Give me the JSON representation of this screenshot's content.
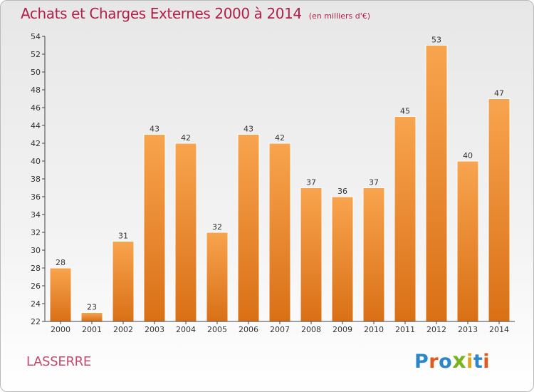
{
  "title": {
    "main": "Achats et Charges Externes 2000 à 2014",
    "unit": "(en milliers d'€)"
  },
  "commune": "LASSERRE",
  "brand": {
    "letters": [
      "P",
      "r",
      "o",
      "x",
      "i",
      "t",
      "i"
    ],
    "colors": [
      "#2d86c8",
      "#e05a1f",
      "#2d86c8",
      "#77b41e",
      "#e8a01a",
      "#2d86c8",
      "#e05a1f"
    ]
  },
  "colors": {
    "bar_light": "#f8a44e",
    "bar_dark": "#d97016",
    "axis": "#444444",
    "grid": "#d4d4d4"
  },
  "chart_data": {
    "type": "bar",
    "categories": [
      "2000",
      "2001",
      "2002",
      "2003",
      "2004",
      "2005",
      "2006",
      "2007",
      "2008",
      "2009",
      "2010",
      "2011",
      "2012",
      "2013",
      "2014"
    ],
    "values": [
      28,
      23,
      31,
      43,
      42,
      32,
      43,
      42,
      37,
      36,
      37,
      45,
      53,
      40,
      47
    ],
    "title": "Achats et Charges Externes 2000 à 2014",
    "subtitle": "(en milliers d'€)",
    "xlabel": "",
    "ylabel": "",
    "ylim": [
      22,
      54
    ],
    "yticks": [
      22,
      24,
      26,
      28,
      30,
      32,
      34,
      36,
      38,
      40,
      42,
      44,
      46,
      48,
      50,
      52,
      54
    ],
    "grid": false,
    "data_labels": true
  }
}
